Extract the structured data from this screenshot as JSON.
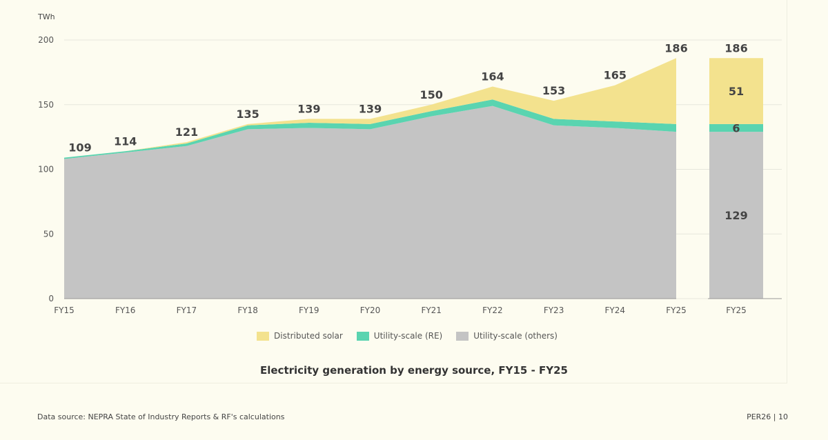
{
  "chart_data": [
    {
      "type": "area",
      "title": "Electricity generation by energy source, FY15 - FY25",
      "ylabel": "TWh",
      "xlabel": "",
      "ylim": [
        0,
        200
      ],
      "yticks": [
        0,
        50,
        100,
        150,
        200
      ],
      "stacked": true,
      "grid": "horizontal",
      "legend_placement": "bottom",
      "x": [
        "FY15",
        "FY16",
        "FY17",
        "FY18",
        "FY19",
        "FY20",
        "FY21",
        "FY22",
        "FY23",
        "FY24",
        "FY25"
      ],
      "series": [
        {
          "name": "Utility-scale (others)",
          "color": "#c4c4c4",
          "values": [
            108,
            113,
            118,
            131,
            132,
            131,
            141,
            149,
            134,
            132,
            129
          ]
        },
        {
          "name": "Utility-scale (RE)",
          "color": "#5ad4b0",
          "values": [
            1,
            1,
            2,
            3,
            4,
            4,
            4,
            5,
            5,
            5,
            6
          ]
        },
        {
          "name": "Distributed solar",
          "color": "#f3e28e",
          "values": [
            0,
            0,
            1,
            1,
            3,
            4,
            5,
            10,
            14,
            28,
            51
          ]
        }
      ],
      "totals": [
        "109",
        "114",
        "121",
        "135",
        "139",
        "139",
        "150",
        "164",
        "153",
        "165",
        "186"
      ]
    },
    {
      "type": "bar",
      "stacked": true,
      "categories": [
        "FY25"
      ],
      "ylim": [
        0,
        200
      ],
      "series": [
        {
          "name": "Utility-scale (others)",
          "color": "#c4c4c4",
          "values": [
            129
          ],
          "label": "129"
        },
        {
          "name": "Utility-scale (RE)",
          "color": "#5ad4b0",
          "values": [
            6
          ],
          "label": "6"
        },
        {
          "name": "Distributed solar",
          "color": "#f3e28e",
          "values": [
            51
          ],
          "label": "51"
        }
      ],
      "total": "186"
    }
  ],
  "legend": [
    {
      "label": "Distributed solar",
      "color": "#f3e28e"
    },
    {
      "label": "Utility-scale (RE)",
      "color": "#5ad4b0"
    },
    {
      "label": "Utility-scale (others)",
      "color": "#c4c4c4"
    }
  ],
  "footer": {
    "source": "Data source: NEPRA State of Industry Reports & RF's calculations",
    "page": "PER26 | 10"
  }
}
